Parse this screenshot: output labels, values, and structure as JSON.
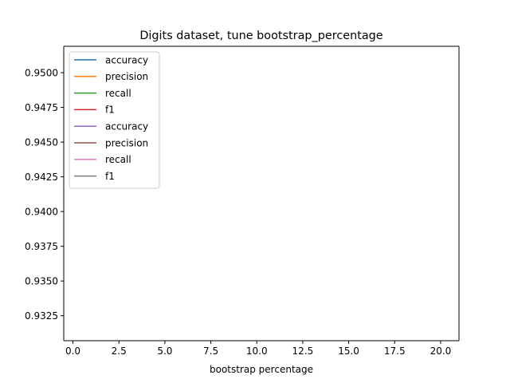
{
  "chart_data": {
    "type": "line",
    "title": "Digits dataset, tune bootstrap_percentage",
    "xlabel": "bootstrap percentage",
    "ylabel": "",
    "xlim": [
      -0.5,
      21
    ],
    "ylim": [
      0.9307,
      0.9519
    ],
    "x_ticks": [
      {
        "value": 0,
        "label": "0.0"
      },
      {
        "value": 2.5,
        "label": "2.5"
      },
      {
        "value": 5,
        "label": "5.0"
      },
      {
        "value": 7.5,
        "label": "7.5"
      },
      {
        "value": 10,
        "label": "10.0"
      },
      {
        "value": 12.5,
        "label": "12.5"
      },
      {
        "value": 15,
        "label": "15.0"
      },
      {
        "value": 17.5,
        "label": "17.5"
      },
      {
        "value": 20,
        "label": "20.0"
      }
    ],
    "y_ticks": [
      {
        "value": 0.9325,
        "label": "0.9325"
      },
      {
        "value": 0.935,
        "label": "0.9350"
      },
      {
        "value": 0.9375,
        "label": "0.9375"
      },
      {
        "value": 0.94,
        "label": "0.9400"
      },
      {
        "value": 0.9425,
        "label": "0.9425"
      },
      {
        "value": 0.945,
        "label": "0.9450"
      },
      {
        "value": 0.9475,
        "label": "0.9475"
      },
      {
        "value": 0.95,
        "label": "0.9500"
      }
    ],
    "grid": false,
    "legend_position": "top-left",
    "series": [
      {
        "name": "accuracy",
        "color": "#1f77b4",
        "points": []
      },
      {
        "name": "precision",
        "color": "#ff7f0e",
        "points": []
      },
      {
        "name": "recall",
        "color": "#2ca02c",
        "points": []
      },
      {
        "name": "f1",
        "color": "#d62728",
        "points": []
      },
      {
        "name": "accuracy",
        "color": "#9467bd",
        "points": []
      },
      {
        "name": "precision",
        "color": "#8c564b",
        "points": []
      },
      {
        "name": "recall",
        "color": "#e377c2",
        "points": []
      },
      {
        "name": "f1",
        "color": "#7f7f7f",
        "points": []
      }
    ]
  }
}
